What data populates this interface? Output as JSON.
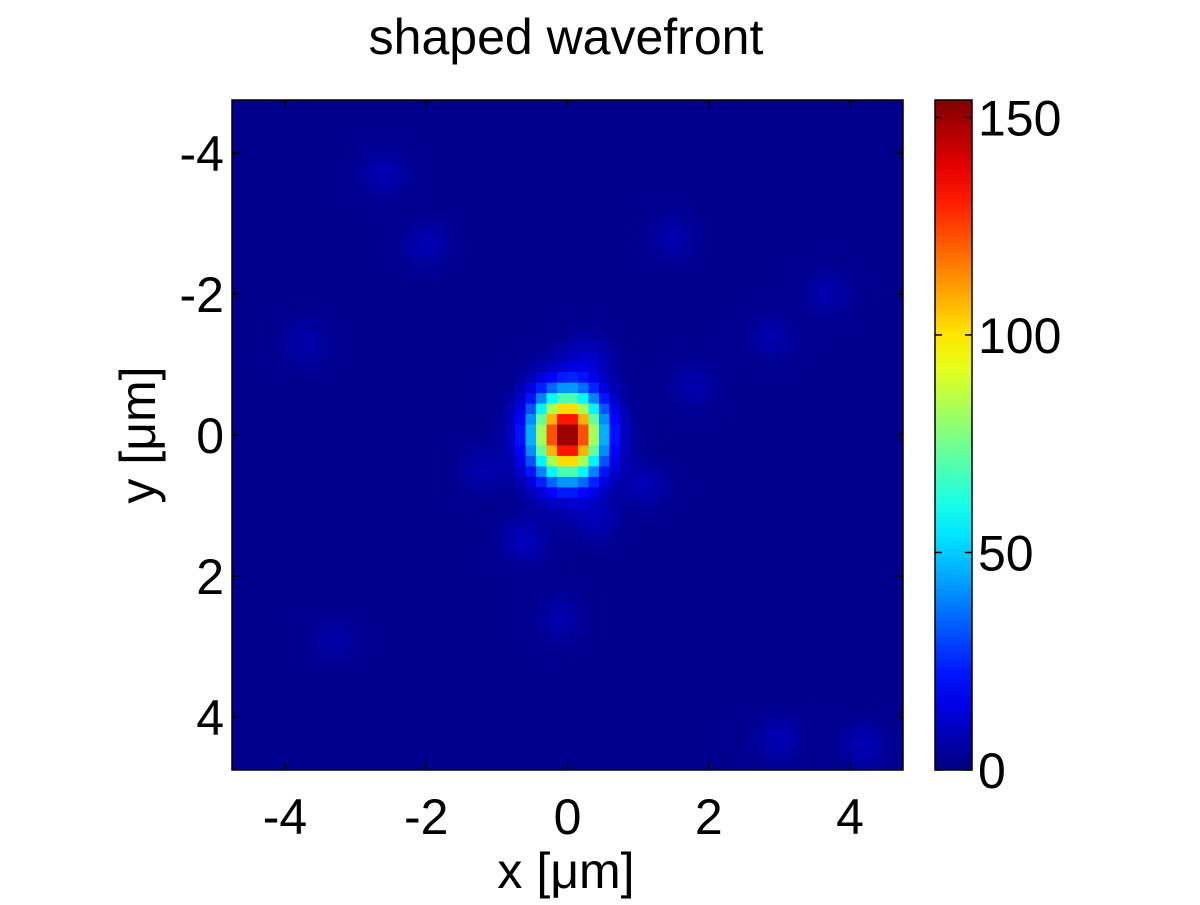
{
  "chart_data": {
    "type": "heatmap",
    "title": "shaped wavefront",
    "xlabel": "x [μm]",
    "ylabel": "y [μm]",
    "xlim": [
      -4.75,
      4.75
    ],
    "ylim": [
      -4.75,
      4.75
    ],
    "y_direction": "reversed",
    "x_ticks": [
      -4,
      -2,
      0,
      2,
      4
    ],
    "x_tick_labels": [
      "-4",
      "-2",
      "0",
      "2",
      "4"
    ],
    "y_ticks": [
      -4,
      -2,
      0,
      2,
      4
    ],
    "y_tick_labels": [
      "-4",
      "-2",
      "0",
      "2",
      "4"
    ],
    "colormap": "jet",
    "clim": [
      0,
      154
    ],
    "colorbar": {
      "location": "right",
      "ticks": [
        0,
        50,
        100,
        150
      ],
      "tick_labels": [
        "0",
        "50",
        "100",
        "150"
      ]
    },
    "background_level": 2,
    "grid_resolution": [
      64,
      64
    ],
    "peak": {
      "x": 0.0,
      "y": 0.0,
      "value": 154,
      "sigma_x": 0.33,
      "sigma_y": 0.41
    },
    "speckles": [
      {
        "x": -2.6,
        "y": -3.7,
        "value": 6
      },
      {
        "x": -2.0,
        "y": -2.7,
        "value": 6
      },
      {
        "x": 1.5,
        "y": -2.8,
        "value": 5
      },
      {
        "x": 3.7,
        "y": -2.0,
        "value": 5
      },
      {
        "x": 2.9,
        "y": -1.4,
        "value": 5
      },
      {
        "x": -3.7,
        "y": -1.3,
        "value": 5
      },
      {
        "x": 0.3,
        "y": -1.1,
        "value": 7
      },
      {
        "x": 1.8,
        "y": -0.7,
        "value": 5
      },
      {
        "x": -1.2,
        "y": 0.5,
        "value": 5
      },
      {
        "x": 1.1,
        "y": 0.7,
        "value": 6
      },
      {
        "x": -0.6,
        "y": 1.5,
        "value": 7
      },
      {
        "x": 0.4,
        "y": 1.2,
        "value": 6
      },
      {
        "x": -0.1,
        "y": 2.6,
        "value": 5
      },
      {
        "x": -3.3,
        "y": 2.9,
        "value": 4
      },
      {
        "x": 3.0,
        "y": 4.3,
        "value": 6
      },
      {
        "x": 4.2,
        "y": 4.4,
        "value": 6
      }
    ]
  }
}
